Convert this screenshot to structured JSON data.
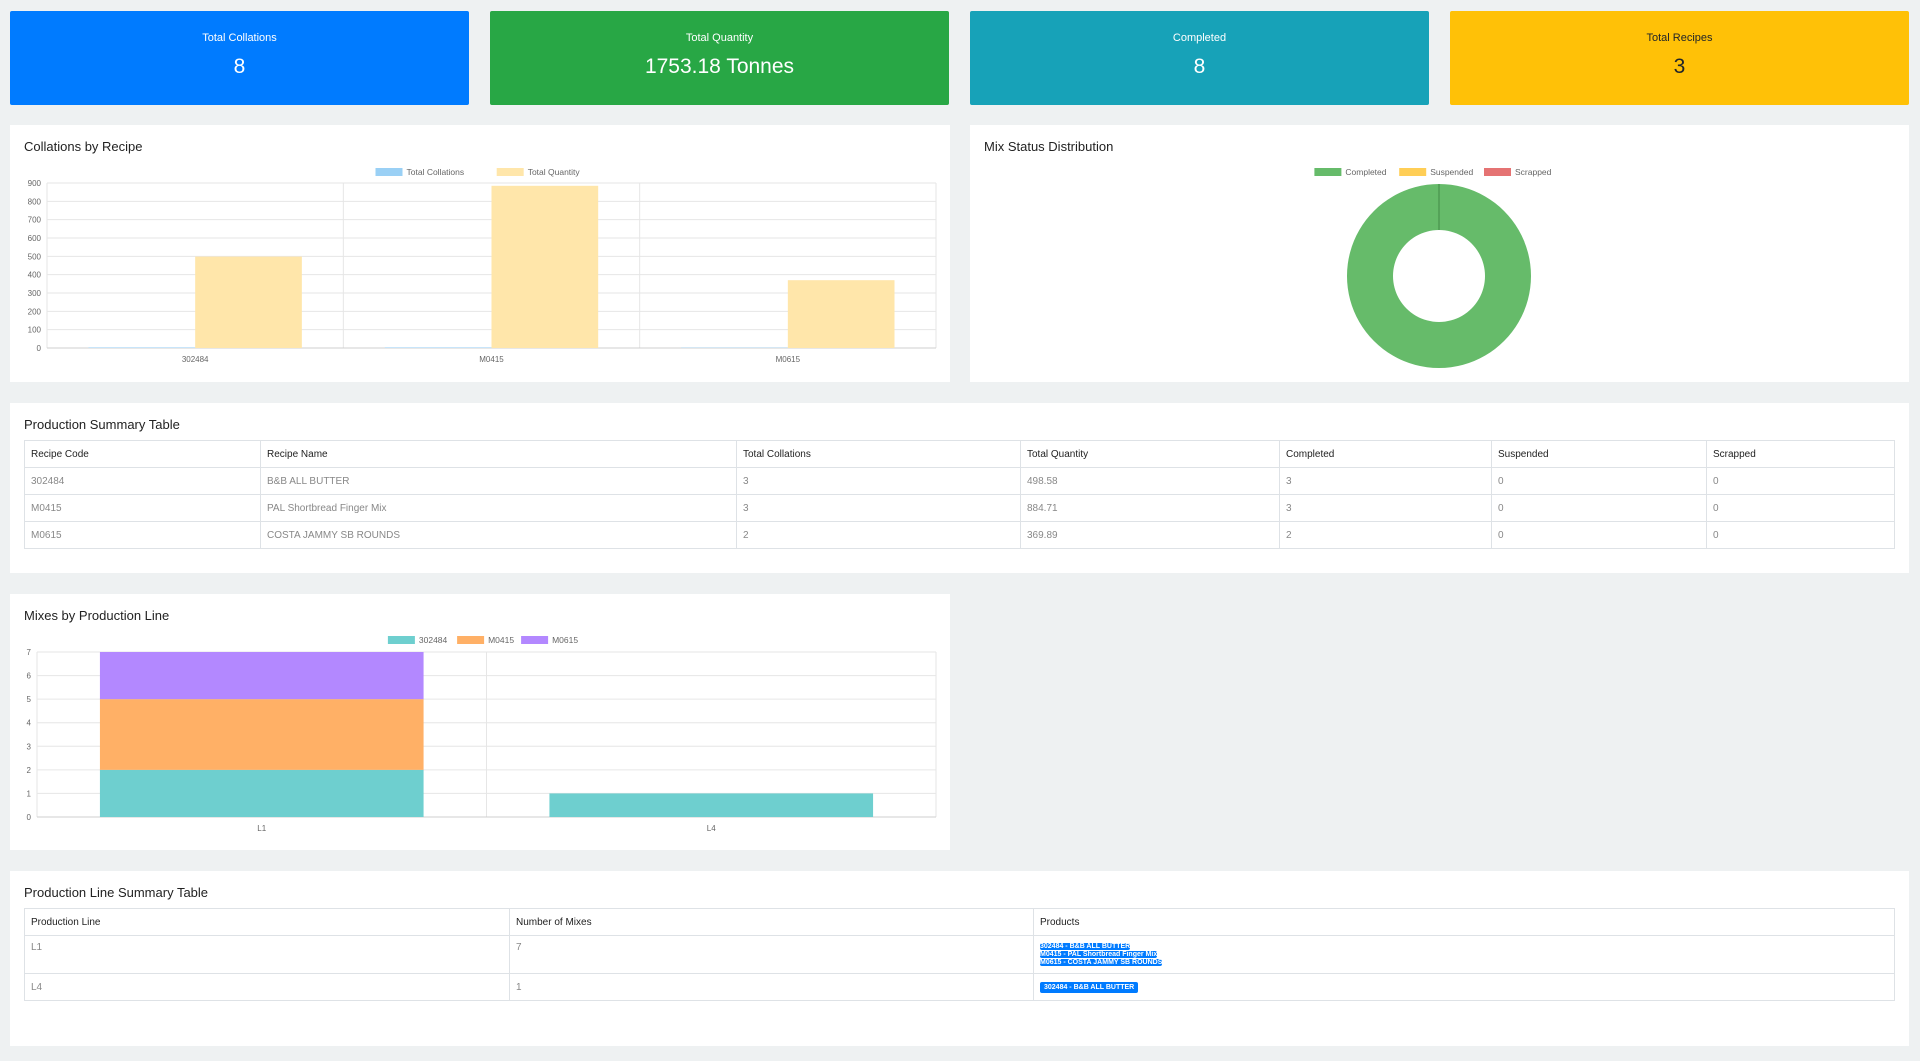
{
  "stats": [
    {
      "label": "Total Collations",
      "value": "8"
    },
    {
      "label": "Total Quantity",
      "value": "1753.18 Tonnes"
    },
    {
      "label": "Completed",
      "value": "8"
    },
    {
      "label": "Total Recipes",
      "value": "3"
    }
  ],
  "colors": {
    "total_collations": "#9ad0f5",
    "total_quantity": "#ffe6aa",
    "completed": "#66bb6a",
    "suspended": "#ffce56",
    "scrapped": "#e57373",
    "r302484": "#6ecfcf",
    "rM0415": "#ffb066",
    "rM0615": "#b388ff"
  },
  "panels": {
    "collations_title": "Collations by Recipe",
    "status_title": "Mix Status Distribution",
    "summary_title": "Production Summary Table",
    "mixes_title": "Mixes by Production Line",
    "line_summary_title": "Production Line Summary Table"
  },
  "chart_data": [
    {
      "type": "bar",
      "title": "Collations by Recipe",
      "categories": [
        "302484",
        "M0415",
        "M0615"
      ],
      "series": [
        {
          "name": "Total Collations",
          "values": [
            3,
            3,
            2
          ]
        },
        {
          "name": "Total Quantity",
          "values": [
            498.58,
            884.71,
            369.89
          ]
        }
      ],
      "ylim": [
        0,
        900
      ],
      "yticks": [
        "0",
        "100",
        "200",
        "300",
        "400",
        "500",
        "600",
        "700",
        "800",
        "900"
      ],
      "legend": "top"
    },
    {
      "type": "pie",
      "title": "Mix Status Distribution",
      "labels": [
        "Completed",
        "Suspended",
        "Scrapped"
      ],
      "values": [
        8,
        0,
        0
      ],
      "legend": "top"
    },
    {
      "type": "bar",
      "stacked": true,
      "title": "Mixes by Production Line",
      "categories": [
        "L1",
        "L4"
      ],
      "series": [
        {
          "name": "302484",
          "values": [
            2,
            1
          ]
        },
        {
          "name": "M0415",
          "values": [
            3,
            0
          ]
        },
        {
          "name": "M0615",
          "values": [
            2,
            0
          ]
        }
      ],
      "ylim": [
        0,
        7
      ],
      "yticks": [
        "0",
        "1",
        "2",
        "3",
        "4",
        "5",
        "6",
        "7"
      ],
      "legend": "top"
    }
  ],
  "summary_table": {
    "headers": [
      "Recipe Code",
      "Recipe Name",
      "Total Collations",
      "Total Quantity",
      "Completed",
      "Suspended",
      "Scrapped"
    ],
    "rows": [
      [
        "302484",
        "B&B ALL BUTTER",
        "3",
        "498.58",
        "3",
        "0",
        "0"
      ],
      [
        "M0415",
        "PAL Shortbread Finger Mix",
        "3",
        "884.71",
        "3",
        "0",
        "0"
      ],
      [
        "M0615",
        "COSTA JAMMY SB ROUNDS",
        "2",
        "369.89",
        "2",
        "0",
        "0"
      ]
    ]
  },
  "line_table": {
    "headers": [
      "Production Line",
      "Number of Mixes",
      "Products"
    ],
    "rows": [
      {
        "line": "L1",
        "mixes": "7",
        "products": [
          "302484 - B&B ALL BUTTER",
          "M0415 - PAL Shortbread Finger Mix",
          "M0615 - COSTA JAMMY SB ROUNDS"
        ]
      },
      {
        "line": "L4",
        "mixes": "1",
        "products": [
          "302484 - B&B ALL BUTTER"
        ]
      }
    ]
  }
}
